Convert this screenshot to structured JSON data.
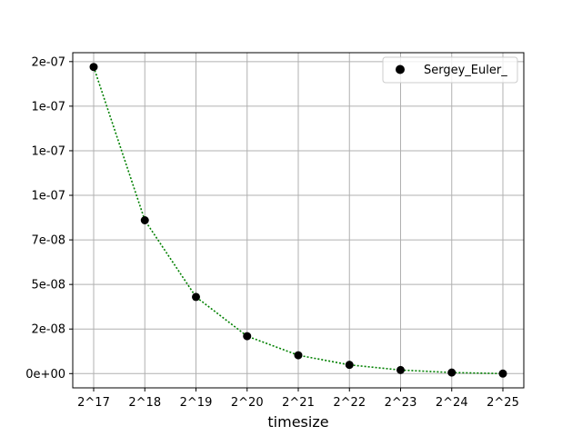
{
  "chart_data": {
    "type": "scatter",
    "title": "",
    "xlabel": "timesize",
    "ylabel": "",
    "x_tick_labels": [
      "2^17",
      "2^18",
      "2^19",
      "2^20",
      "2^21",
      "2^22",
      "2^23",
      "2^24",
      "2^25"
    ],
    "y_ticks": [
      0,
      2.5e-08,
      5e-08,
      7.5e-08,
      1e-07,
      1.25e-07,
      1.5e-07,
      1.75e-07
    ],
    "y_tick_labels": [
      "0e+00",
      "2e-08",
      "5e-08",
      "7e-08",
      "1e-07",
      "1e-07",
      "1e-07",
      "2e-07"
    ],
    "ylim": [
      -8e-09,
      1.8e-07
    ],
    "grid": true,
    "legend_position": "top-right",
    "series": [
      {
        "name": "Sergey_Euler_",
        "marker_color": "#000000",
        "line_color": "#008000",
        "line_style": "dotted",
        "values": [
          1.72e-07,
          8.6e-08,
          4.3e-08,
          2.1e-08,
          1.03e-08,
          4.9e-09,
          2e-09,
          6e-10,
          0
        ]
      }
    ]
  }
}
